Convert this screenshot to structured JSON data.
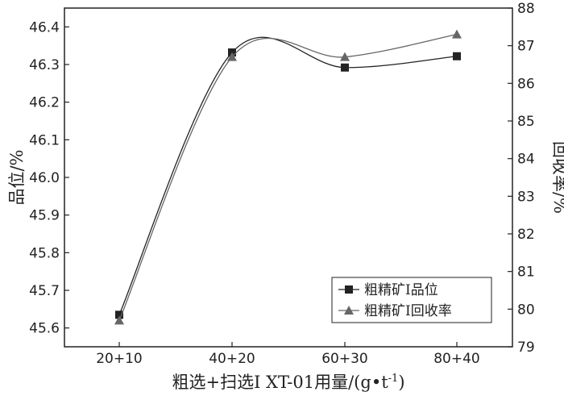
{
  "chart_data": {
    "type": "line",
    "categories": [
      "20+10",
      "40+20",
      "60+30",
      "80+40"
    ],
    "xlabel_main": "粗选+扫选Ⅰ XT-01用量/(g•t",
    "xlabel_sup": "-1",
    "xlabel_tail": ")",
    "ylabel_left": "品位/%",
    "ylabel_right": "回收率/%",
    "ylim_left": [
      45.55,
      46.45
    ],
    "yticks_left": [
      "45.6",
      "45.7",
      "45.8",
      "45.9",
      "46.0",
      "46.1",
      "46.2",
      "46.3",
      "46.4"
    ],
    "ylim_right": [
      79,
      88
    ],
    "yticks_right": [
      "79",
      "80",
      "81",
      "82",
      "83",
      "84",
      "85",
      "86",
      "87",
      "88"
    ],
    "series": [
      {
        "name": "粗精矿Ⅰ品位",
        "axis": "left",
        "marker": "square",
        "values": [
          45.635,
          46.332,
          46.292,
          46.322
        ]
      },
      {
        "name": "粗精矿Ⅰ回收率",
        "axis": "right",
        "marker": "triangle",
        "values": [
          79.7,
          86.7,
          86.7,
          87.3
        ]
      }
    ],
    "legend_position": "bottom-right",
    "grid": false
  }
}
